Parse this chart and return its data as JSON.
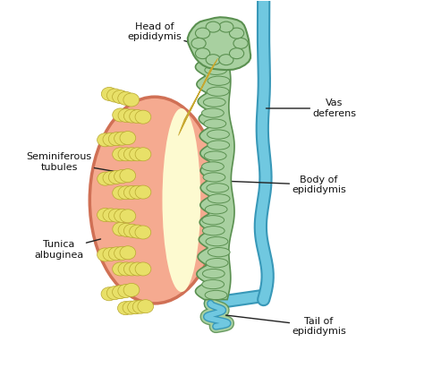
{
  "bg_color": "#ffffff",
  "testis_outer_color": "#f5aa90",
  "testis_outer_edge": "#d07055",
  "testis_inner_color": "#fdfad0",
  "tubule_color": "#e8e068",
  "tubule_edge": "#b8a830",
  "epi_color": "#a8d0a0",
  "epi_edge": "#5a9050",
  "vas_color": "#70c8e0",
  "vas_edge": "#3898b8",
  "line_color": "#222222",
  "text_color": "#111111",
  "labels": {
    "head": "Head of\nepididymis",
    "vas": "Vas\ndeferens",
    "seminiferous": "Seminiferous\ntubules",
    "tunica": "Tunica\nalbuginea",
    "body": "Body of\nepididymis",
    "tail": "Tail of\nepididymis"
  },
  "figsize": [
    4.74,
    4.3
  ],
  "dpi": 100
}
